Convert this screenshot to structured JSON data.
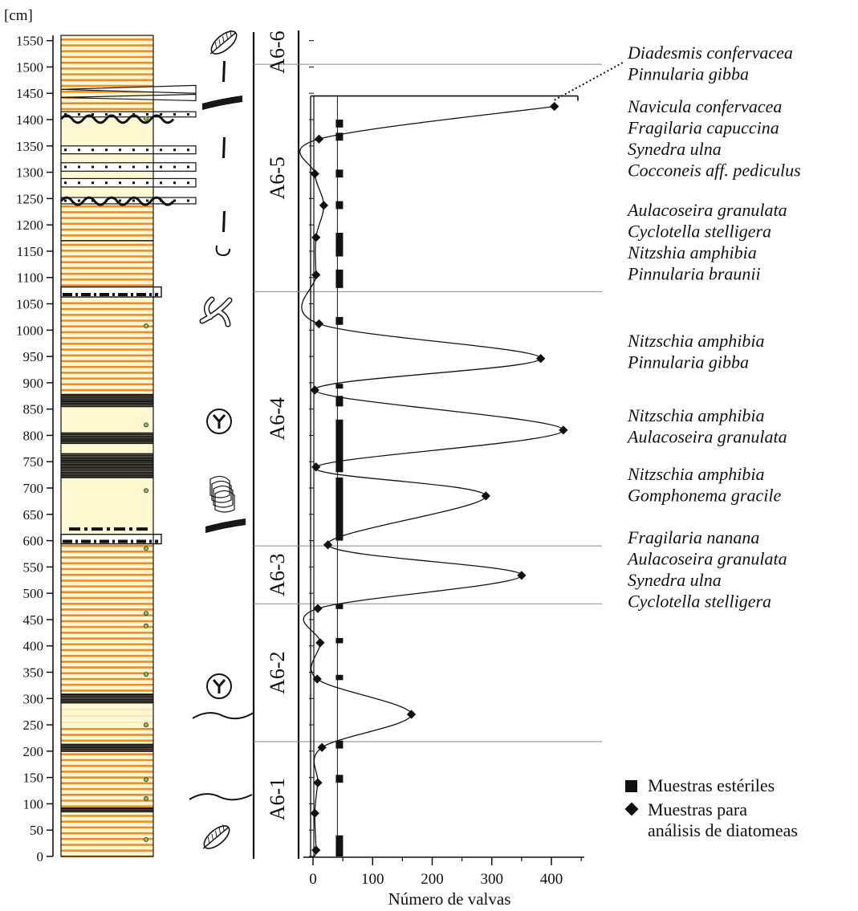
{
  "chart_data": {
    "type": "line",
    "unit_label": "[cm]",
    "xlabel": "Número de valvas",
    "x_ticks": [
      0,
      100,
      200,
      300,
      400
    ],
    "xlim": [
      0,
      450
    ],
    "depth_ticks": [
      0,
      50,
      100,
      150,
      200,
      250,
      300,
      350,
      400,
      450,
      500,
      550,
      600,
      650,
      700,
      750,
      800,
      850,
      900,
      950,
      1000,
      1050,
      1100,
      1150,
      1200,
      1250,
      1300,
      1350,
      1400,
      1450,
      1500,
      1550
    ],
    "ylim": [
      0,
      1560
    ],
    "units": [
      {
        "label": "A6-1",
        "bottom": 0,
        "top": 218
      },
      {
        "label": "A6-2",
        "bottom": 218,
        "top": 480
      },
      {
        "label": "A6-3",
        "bottom": 480,
        "top": 590
      },
      {
        "label": "A6-4",
        "bottom": 590,
        "top": 1073
      },
      {
        "label": "A6-5",
        "bottom": 1073,
        "top": 1505
      },
      {
        "label": "A6-6",
        "bottom": 1505,
        "top": 1560
      }
    ],
    "diatom_samples": [
      {
        "depth": 12,
        "value": 5
      },
      {
        "depth": 82,
        "value": 3
      },
      {
        "depth": 140,
        "value": 8
      },
      {
        "depth": 207,
        "value": 15
      },
      {
        "depth": 270,
        "value": 165
      },
      {
        "depth": 337,
        "value": 7
      },
      {
        "depth": 406,
        "value": 12
      },
      {
        "depth": 471,
        "value": 8
      },
      {
        "depth": 534,
        "value": 350
      },
      {
        "depth": 592,
        "value": 25
      },
      {
        "depth": 685,
        "value": 290
      },
      {
        "depth": 740,
        "value": 5
      },
      {
        "depth": 810,
        "value": 420
      },
      {
        "depth": 886,
        "value": 3
      },
      {
        "depth": 946,
        "value": 382
      },
      {
        "depth": 1012,
        "value": 10
      },
      {
        "depth": 1105,
        "value": 5
      },
      {
        "depth": 1176,
        "value": 5
      },
      {
        "depth": 1237,
        "value": 18
      },
      {
        "depth": 1297,
        "value": 3
      },
      {
        "depth": 1363,
        "value": 10
      },
      {
        "depth": 1425,
        "value": 405
      }
    ],
    "sterile_samples_x": 45,
    "sterile_segments": [
      [
        0,
        40
      ],
      [
        140,
        155
      ],
      [
        205,
        220
      ],
      [
        335,
        345
      ],
      [
        405,
        415
      ],
      [
        470,
        480
      ],
      [
        600,
        720
      ],
      [
        730,
        830
      ],
      [
        855,
        875
      ],
      [
        890,
        898
      ],
      [
        1010,
        1025
      ],
      [
        1080,
        1115
      ],
      [
        1140,
        1185
      ],
      [
        1230,
        1245
      ],
      [
        1290,
        1305
      ],
      [
        1360,
        1375
      ],
      [
        1385,
        1400
      ]
    ],
    "taxa_groups": [
      {
        "names": [
          "Diadesmis confervacea",
          "Pinnularia gibba"
        ]
      },
      {
        "names": [
          "Navicula confervacea",
          "Fragilaria capuccina",
          "Synedra ulna",
          "Cocconeis aff. pediculus"
        ]
      },
      {
        "names": [
          "Aulacoseira granulata",
          "Cyclotella stelligera",
          "Nitzshia amphibia",
          "Pinnularia braunii"
        ]
      },
      {
        "names": [
          "Nitzschia amphibia",
          "Pinnularia gibba"
        ]
      },
      {
        "names": [
          "Nitzschia amphibia",
          "Aulacoseira granulata"
        ]
      },
      {
        "names": [
          "Nitzschia amphibia",
          "Gomphonema gracile"
        ]
      },
      {
        "names": [
          "Fragilaria nanana",
          "Aulacoseira granulata",
          "Synedra ulna",
          "Cyclotella stelligera"
        ]
      }
    ],
    "legend": [
      {
        "symbol": "square",
        "label": "Muestras estériles"
      },
      {
        "symbol": "diamond",
        "label": "Muestras para"
      },
      {
        "symbol": "none",
        "label": "análisis de diatomeas"
      }
    ],
    "colors": {
      "orange": "#f08c28",
      "cream": "#fff8d2",
      "black": "#111111"
    }
  }
}
